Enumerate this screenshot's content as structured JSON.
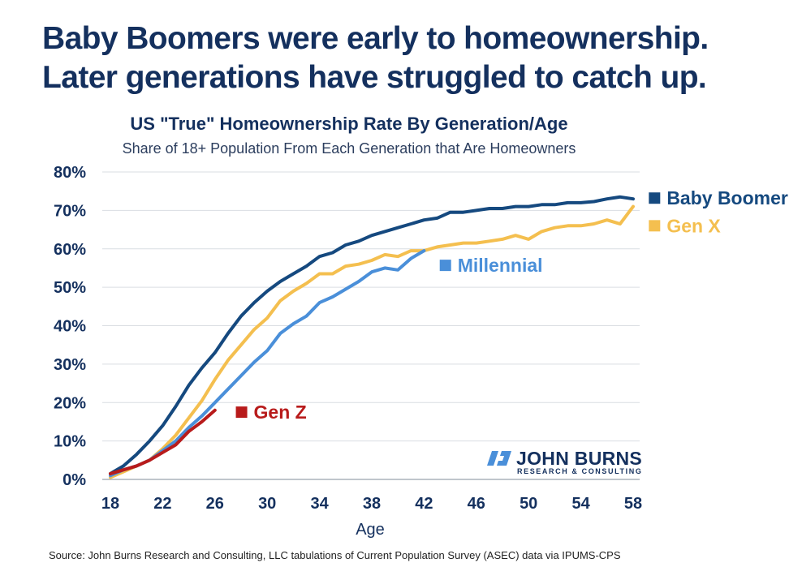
{
  "headline": {
    "line1": "Baby Boomers were early to homeownership.",
    "line2": "Later generations have struggled to catch up."
  },
  "source": "Source: John Burns Research and Consulting, LLC tabulations of Current Population Survey (ASEC) data via IPUMS-CPS",
  "logo": {
    "name": "JOHN BURNS",
    "sub": "RESEARCH & CONSULTING",
    "color": "#14305e",
    "accent": "#4a8fd9"
  },
  "chart_data": {
    "type": "line",
    "title": "US \"True\" Homeownership Rate By Generation/Age",
    "subtitle": "Share of 18+ Population From Each Generation that Are Homeowners",
    "xlabel": "Age",
    "ylabel": "",
    "xlim": [
      18,
      58
    ],
    "ylim": [
      0,
      80
    ],
    "xticks": [
      18,
      22,
      26,
      30,
      34,
      38,
      42,
      46,
      50,
      54,
      58
    ],
    "yticks": [
      0,
      10,
      20,
      30,
      40,
      50,
      60,
      70,
      80
    ],
    "ytick_labels": [
      "0%",
      "10%",
      "20%",
      "30%",
      "40%",
      "50%",
      "60%",
      "70%",
      "80%"
    ],
    "grid": "horizontal",
    "legend": "direct labels at line ends",
    "series": [
      {
        "name": "Baby Boomer",
        "color": "#15497f",
        "x": [
          18,
          19,
          20,
          21,
          22,
          23,
          24,
          25,
          26,
          27,
          28,
          29,
          30,
          31,
          32,
          33,
          34,
          35,
          36,
          37,
          38,
          39,
          40,
          41,
          42,
          43,
          44,
          45,
          46,
          47,
          48,
          49,
          50,
          51,
          52,
          53,
          54,
          55,
          56,
          57,
          58
        ],
        "values": [
          1.5,
          3.5,
          6.5,
          10,
          14,
          19,
          24.5,
          29,
          33,
          38,
          42.5,
          46,
          49,
          51.5,
          53.5,
          55.5,
          58,
          59,
          61,
          62,
          63.5,
          64.5,
          65.5,
          66.5,
          67.5,
          68,
          69.5,
          69.5,
          70,
          70.5,
          70.5,
          71,
          71,
          71.5,
          71.5,
          72,
          72,
          72.3,
          73,
          73.5,
          73
        ]
      },
      {
        "name": "Gen X",
        "color": "#f4bf4f",
        "x": [
          18,
          19,
          20,
          21,
          22,
          23,
          24,
          25,
          26,
          27,
          28,
          29,
          30,
          31,
          32,
          33,
          34,
          35,
          36,
          37,
          38,
          39,
          40,
          41,
          42,
          43,
          44,
          45,
          46,
          47,
          48,
          49,
          50,
          51,
          52,
          53,
          54,
          55,
          56,
          57,
          58
        ],
        "values": [
          0.5,
          2,
          3.5,
          5,
          8,
          11.5,
          16,
          20.5,
          26,
          31,
          35,
          39,
          42,
          46.5,
          49,
          51,
          53.5,
          53.5,
          55.5,
          56,
          57,
          58.5,
          58,
          59.5,
          59.5,
          60.5,
          61,
          61.5,
          61.5,
          62,
          62.5,
          63.5,
          62.5,
          64.5,
          65.5,
          66,
          66,
          66.5,
          67.5,
          66.5,
          71
        ]
      },
      {
        "name": "Millennial",
        "color": "#4a8fd9",
        "x": [
          18,
          19,
          20,
          21,
          22,
          23,
          24,
          25,
          26,
          27,
          28,
          29,
          30,
          31,
          32,
          33,
          34,
          35,
          36,
          37,
          38,
          39,
          40,
          41,
          42
        ],
        "values": [
          1,
          2.5,
          3.5,
          5,
          7.5,
          10,
          13.5,
          16.5,
          20,
          23.5,
          27,
          30.5,
          33.5,
          38,
          40.5,
          42.5,
          46,
          47.5,
          49.5,
          51.5,
          54,
          55,
          54.5,
          57.5,
          59.5
        ]
      },
      {
        "name": "Gen Z",
        "color": "#b81b1b",
        "x": [
          18,
          19,
          20,
          21,
          22,
          23,
          24,
          25,
          26
        ],
        "values": [
          1.5,
          2.5,
          3.5,
          5,
          7,
          9,
          12.5,
          15,
          18
        ]
      }
    ],
    "labels": [
      {
        "series": "Baby Boomer",
        "text": "Baby Boomer",
        "at": [
          59.2,
          73.2
        ]
      },
      {
        "series": "Gen X",
        "text": "Gen X",
        "at": [
          59.2,
          66
        ]
      },
      {
        "series": "Millennial",
        "text": "Millennial",
        "at": [
          43.2,
          55.7
        ]
      },
      {
        "series": "Gen Z",
        "text": "Gen Z",
        "at": [
          27.6,
          17.5
        ]
      }
    ]
  }
}
